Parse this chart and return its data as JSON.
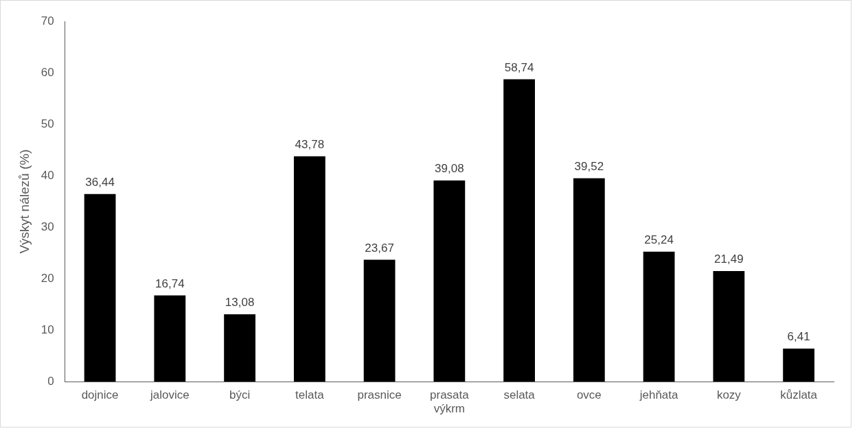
{
  "chart_data": {
    "type": "bar",
    "ylabel": "Výskyt nálezů (%)",
    "categories": [
      "dojnice",
      "jalovice",
      "býci",
      "telata",
      "prasnice",
      "prasata výkrm",
      "selata",
      "ovce",
      "jehňata",
      "kozy",
      "kůzlata"
    ],
    "values": [
      36.44,
      16.74,
      13.08,
      43.78,
      23.67,
      39.08,
      58.74,
      39.52,
      25.24,
      21.49,
      6.41
    ],
    "value_labels": [
      "36,44",
      "16,74",
      "13,08",
      "43,78",
      "23,67",
      "39,08",
      "58,74",
      "39,52",
      "25,24",
      "21,49",
      "6,41"
    ],
    "color": "#000000",
    "ylim": [
      0,
      70
    ],
    "yticks": [
      0,
      10,
      20,
      30,
      40,
      50,
      60,
      70
    ],
    "grid": false,
    "legend": false
  }
}
